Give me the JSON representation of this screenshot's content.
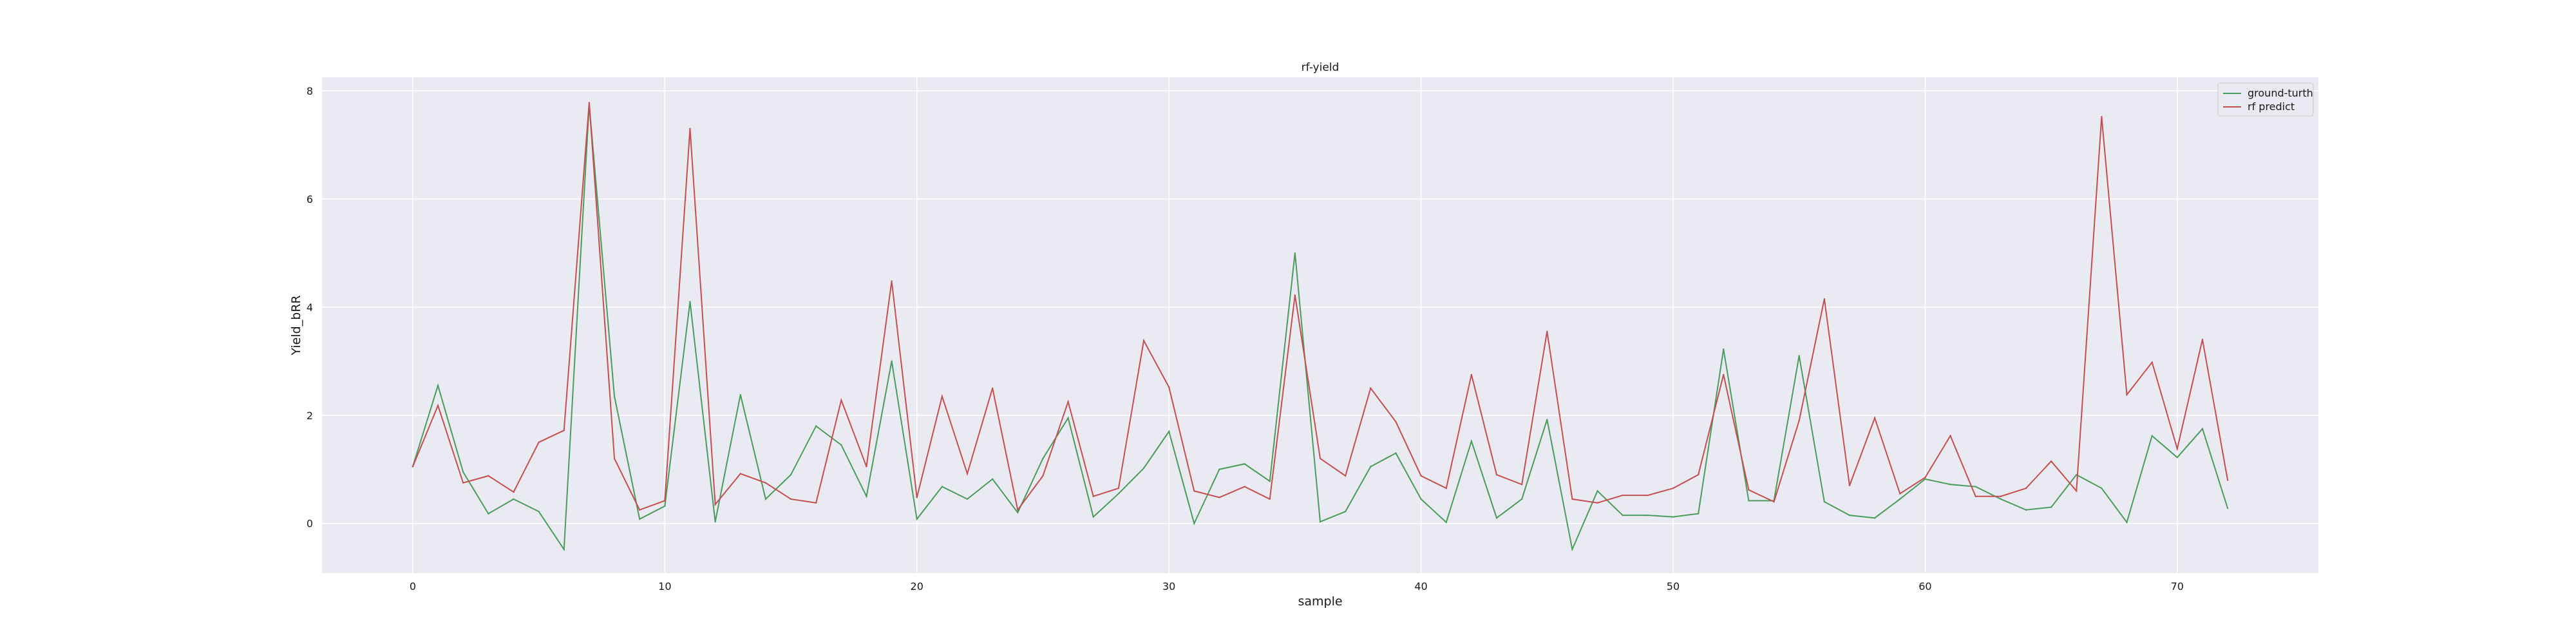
{
  "chart_data": {
    "type": "line",
    "title": "rf-yield",
    "xlabel": "sample",
    "ylabel": "Yield_bRR",
    "xlim": [
      -3.6,
      75.6
    ],
    "ylim": [
      -0.92,
      8.25
    ],
    "xticks": [
      0,
      10,
      20,
      30,
      40,
      50,
      60,
      70
    ],
    "yticks": [
      0,
      2,
      4,
      6,
      8
    ],
    "grid": true,
    "legend_position": "top-right",
    "background": "#eaeaf2",
    "series": [
      {
        "name": "ground-turth",
        "color": "#4c9a5e",
        "x": [
          0,
          1,
          2,
          3,
          4,
          5,
          6,
          7,
          8,
          9,
          10,
          11,
          12,
          13,
          14,
          15,
          16,
          17,
          18,
          19,
          20,
          21,
          22,
          23,
          24,
          25,
          26,
          27,
          28,
          29,
          30,
          31,
          32,
          33,
          34,
          35,
          36,
          37,
          38,
          39,
          40,
          41,
          42,
          43,
          44,
          45,
          46,
          47,
          48,
          49,
          50,
          51,
          52,
          53,
          54,
          55,
          56,
          57,
          58,
          59,
          60,
          61,
          62,
          63,
          64,
          65,
          66,
          67,
          68,
          69,
          70,
          71,
          72
        ],
        "values": [
          1.05,
          2.55,
          0.95,
          0.18,
          0.45,
          0.22,
          -0.48,
          7.75,
          2.35,
          0.08,
          0.32,
          4.1,
          0.03,
          2.38,
          0.45,
          0.9,
          1.8,
          1.45,
          0.5,
          3.0,
          0.08,
          0.68,
          0.45,
          0.82,
          0.2,
          1.2,
          1.95,
          0.12,
          0.55,
          1.02,
          1.7,
          0.0,
          1.0,
          1.1,
          0.78,
          5.0,
          0.03,
          0.22,
          1.05,
          1.3,
          0.45,
          0.02,
          1.52,
          0.1,
          0.45,
          1.92,
          -0.48,
          0.6,
          0.15,
          0.15,
          0.12,
          0.18,
          3.22,
          0.42,
          0.42,
          3.1,
          0.4,
          0.15,
          0.1,
          0.45,
          0.82,
          0.72,
          0.68,
          0.45,
          0.25,
          0.3,
          0.9,
          0.65,
          0.02,
          1.62,
          1.22,
          1.75,
          0.28
        ]
      },
      {
        "name": "rf predict",
        "color": "#c44e52",
        "x": [
          0,
          1,
          2,
          3,
          4,
          5,
          6,
          7,
          8,
          9,
          10,
          11,
          12,
          13,
          14,
          15,
          16,
          17,
          18,
          19,
          20,
          21,
          22,
          23,
          24,
          25,
          26,
          27,
          28,
          29,
          30,
          31,
          32,
          33,
          34,
          35,
          36,
          37,
          38,
          39,
          40,
          41,
          42,
          43,
          44,
          45,
          46,
          47,
          48,
          49,
          50,
          51,
          52,
          53,
          54,
          55,
          56,
          57,
          58,
          59,
          60,
          61,
          62,
          63,
          64,
          65,
          66,
          67,
          68,
          69,
          70,
          71,
          72
        ],
        "values": [
          1.05,
          2.18,
          0.75,
          0.88,
          0.58,
          1.5,
          1.72,
          7.78,
          1.2,
          0.25,
          0.42,
          7.3,
          0.35,
          0.92,
          0.75,
          0.45,
          0.38,
          2.28,
          1.05,
          4.48,
          0.48,
          2.35,
          0.92,
          2.5,
          0.25,
          0.88,
          2.25,
          0.5,
          0.65,
          3.38,
          2.52,
          0.6,
          0.48,
          0.68,
          0.45,
          4.22,
          1.2,
          0.88,
          2.5,
          1.88,
          0.88,
          0.65,
          2.75,
          0.9,
          0.72,
          3.55,
          0.45,
          0.38,
          0.52,
          0.52,
          0.65,
          0.9,
          2.75,
          0.62,
          0.4,
          1.9,
          4.15,
          0.7,
          1.95,
          0.55,
          0.85,
          1.62,
          0.5,
          0.5,
          0.65,
          1.15,
          0.6,
          7.52,
          2.38,
          2.98,
          1.38,
          3.4,
          0.8
        ]
      }
    ]
  }
}
